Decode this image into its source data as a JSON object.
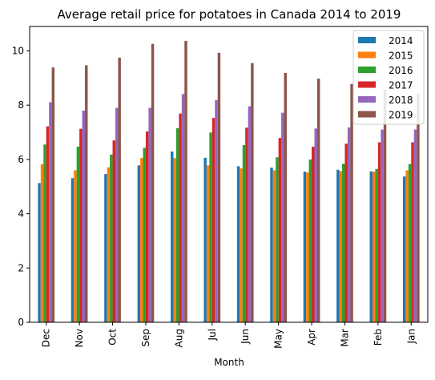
{
  "chart_data": {
    "type": "bar",
    "title": "Average retail price for potatoes in Canada 2014 to 2019",
    "xlabel": "Month",
    "ylabel": "",
    "ylim": [
      0,
      10.9
    ],
    "yticks": [
      0,
      2,
      4,
      6,
      8,
      10
    ],
    "grid": false,
    "legend_position": "top-right",
    "categories": [
      "Dec",
      "Nov",
      "Oct",
      "Sep",
      "Aug",
      "Jul",
      "Jun",
      "May",
      "Apr",
      "Mar",
      "Feb",
      "Jan"
    ],
    "series": [
      {
        "name": "2014",
        "color": "#1f77b4",
        "values": [
          5.13,
          5.31,
          5.46,
          5.78,
          6.29,
          6.06,
          5.75,
          5.7,
          5.55,
          5.62,
          5.56,
          5.37
        ]
      },
      {
        "name": "2015",
        "color": "#ff7f0e",
        "values": [
          5.82,
          5.6,
          5.71,
          6.05,
          6.05,
          5.78,
          5.67,
          5.6,
          5.52,
          5.57,
          5.55,
          5.6
        ]
      },
      {
        "name": "2016",
        "color": "#2ca02c",
        "values": [
          6.55,
          6.47,
          6.18,
          6.43,
          7.15,
          6.99,
          6.53,
          6.08,
          6.0,
          5.84,
          5.65,
          5.83
        ]
      },
      {
        "name": "2017",
        "color": "#d62728",
        "values": [
          7.22,
          7.13,
          6.7,
          7.03,
          7.69,
          7.53,
          7.17,
          6.79,
          6.47,
          6.58,
          6.63,
          6.63
        ]
      },
      {
        "name": "2018",
        "color": "#9467bd",
        "values": [
          8.11,
          7.8,
          7.9,
          7.9,
          8.41,
          8.19,
          7.96,
          7.72,
          7.14,
          7.18,
          7.1,
          7.1
        ]
      },
      {
        "name": "2019",
        "color": "#8c564b",
        "values": [
          9.39,
          9.47,
          9.75,
          10.26,
          10.37,
          9.93,
          9.55,
          9.19,
          8.98,
          8.78,
          8.58,
          8.43
        ]
      }
    ]
  }
}
